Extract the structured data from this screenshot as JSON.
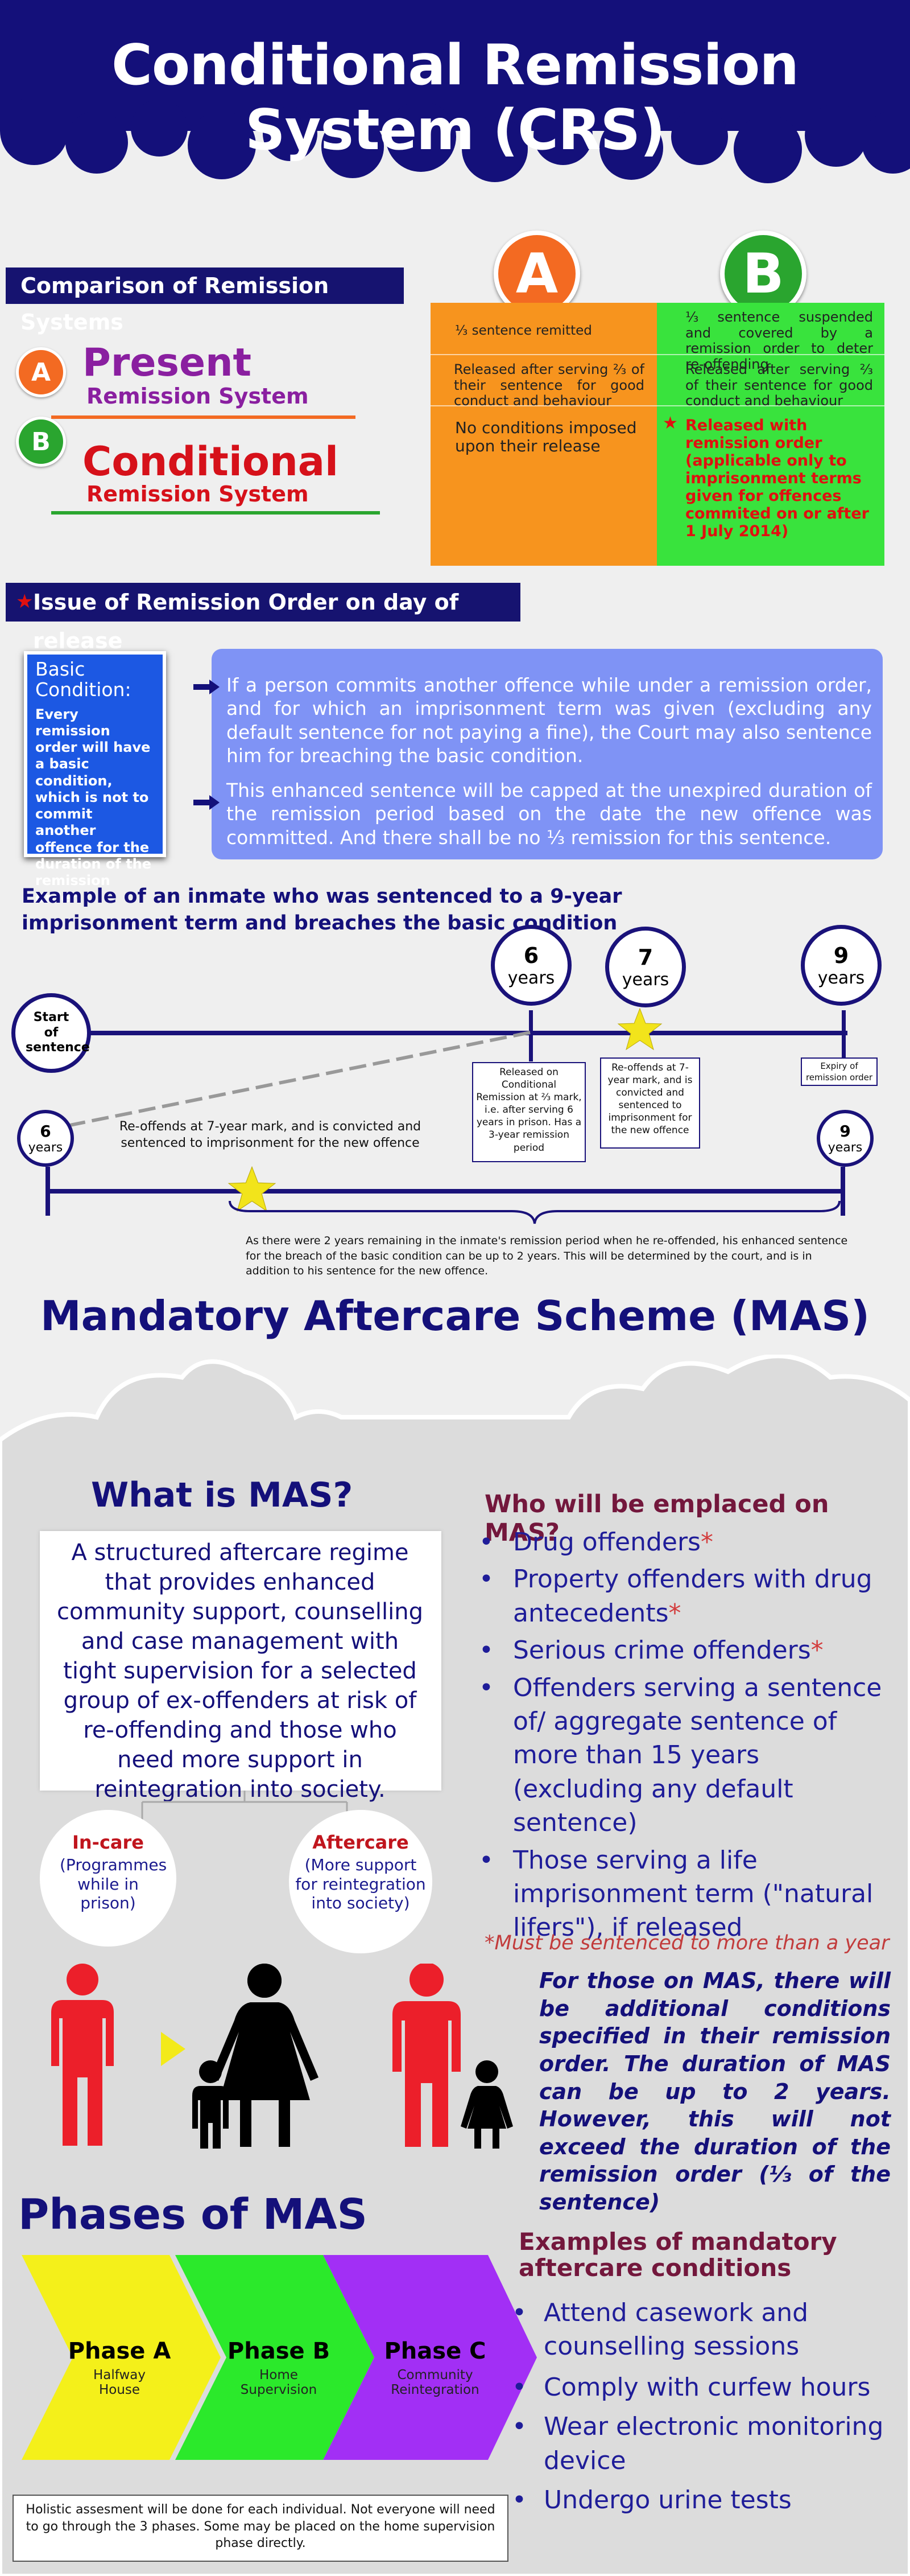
{
  "header": {
    "title": "Conditional Remission System (CRS)"
  },
  "comparison": {
    "title": "Comparison of Remission Systems",
    "a_letter": "A",
    "b_letter": "B",
    "a_present": "Present",
    "a_sub": "Remission System",
    "b_conditional": "Conditional",
    "b_sub": "Remission System",
    "a_rows": [
      "⅓ sentence remitted",
      "Released after serving ⅔ of their sentence for good conduct and behaviour",
      "No conditions imposed upon their release"
    ],
    "b_rows": [
      "⅓ sentence suspended and covered by a remission order to deter re-offending",
      "Released after serving ⅔ of their sentence for good conduct and behaviour",
      "Released with remission order (applicable only to imprisonment terms given for offences commited on or after 1 July 2014)"
    ],
    "colors": {
      "a": "#f7941e",
      "b": "#39e33d",
      "a_badge": "#f36a22",
      "b_badge": "#2aa52f",
      "purple": "#8a1fa0",
      "red": "#d6111a"
    }
  },
  "issue": {
    "title": "Issue of Remission Order on day of release",
    "basic_heading": "Basic Condition:",
    "basic_text": "Every remission order will have a basic condition, which is not to commit another offence for the duration of the remission order.",
    "para1": "If a person commits another offence while under a remission order, and for which an imprisonment term was given (excluding any default sentence for not paying a fine), the Court may also sentence him for breaching the basic condition.",
    "para2": "This enhanced sentence will be capped at the unexpired duration of the remission period based on the date the new offence was committed. And there shall be no ⅓ remission for this sentence."
  },
  "example": {
    "title": "Example of an inmate who was sentenced to a 9-year imprisonment term and breaches the basic condition",
    "start": "Start of sentence",
    "c6_num": "6",
    "c6_unit": "years",
    "c7_num": "7",
    "c7_unit": "years",
    "c9_num": "9",
    "c9_unit": "years",
    "box_release": "Released on Conditional Remission at ⅔ mark, i.e. after serving 6 years in prison. Has a 3-year remission period",
    "box_reoffend": "Re-offends at 7-year mark, and is convicted and sentenced to imprisonment for the new offence",
    "box_expiry": "Expiry of remission order",
    "lower_6_num": "6",
    "lower_6_unit": "years",
    "lower_9_num": "9",
    "lower_9_unit": "years",
    "lower_text": "Re-offends at 7-year mark, and is convicted and sentenced to imprisonment for the new offence",
    "note": "As there were 2 years remaining in the inmate's remission period when he re-offended, his enhanced sentence for the breach of the basic condition can be up to 2 years. This will be determined by the court, and is in addition to his sentence for the new offence."
  },
  "mas": {
    "title": "Mandatory Aftercare Scheme (MAS)",
    "what_title": "What is MAS?",
    "what_text": "A structured aftercare regime that provides enhanced community support, counselling and case management with tight supervision for a selected group of ex-offenders at risk of re-offending and those who need more support in reintegration into society.",
    "incare_title": "In-care",
    "incare_text": "(Programmes while in prison)",
    "aftercare_title": "Aftercare",
    "aftercare_text": "(More support for reintegration into society)",
    "who_title": "Who will be emplaced on MAS?",
    "who_items": [
      {
        "text": "Drug offenders",
        "mark": "*"
      },
      {
        "text": "Property offenders with drug antecedents",
        "mark": "*"
      },
      {
        "text": "Serious crime offenders",
        "mark": "*"
      },
      {
        "text": "Offenders serving a sentence of/ aggregate sentence of more than 15 years (excluding any default sentence)",
        "mark": ""
      },
      {
        "text": "Those serving a life imprisonment term (\"natural lifers\"), if released",
        "mark": ""
      }
    ],
    "who_note": "*Must be sentenced to more than a year",
    "conditions_text": "For those on MAS, there will be additional conditions specified in their remission order. The duration of MAS can be up to 2 years. However, this will not exceed the duration of the remission order (⅓ of the sentence)",
    "phases_title": "Phases of MAS",
    "phases": [
      {
        "name": "Phase A",
        "sub": "Halfway House",
        "color": "#f4f01a"
      },
      {
        "name": "Phase B",
        "sub": "Home Supervision",
        "color": "#2be92b"
      },
      {
        "name": "Phase C",
        "sub": "Community Reintegration",
        "color": "#a22ff5"
      }
    ],
    "phases_note": "Holistic assesment will be done for each individual. Not everyone will need to go through the 3 phases. Some may be placed on the home supervision phase directly.",
    "examples_title": "Examples of mandatory aftercare conditions",
    "examples": [
      "Attend casework and counselling sessions",
      "Comply with curfew hours",
      "Wear electronic monitoring device",
      "Undergo urine tests"
    ]
  }
}
